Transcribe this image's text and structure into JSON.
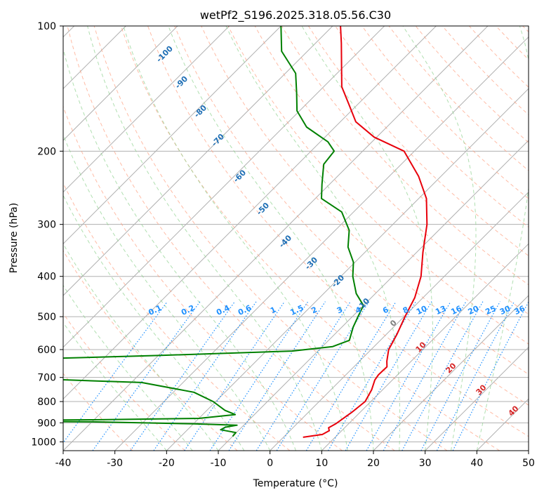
{
  "chart_data": {
    "type": "line",
    "title": "wetPf2_S196.2025.318.05.56.C30",
    "xlabel": "Temperature (°C)",
    "ylabel": "Pressure (hPa)",
    "xlim": [
      -40,
      50
    ],
    "ylim": [
      1050,
      100
    ],
    "y_scale": "log",
    "x_ticks": [
      -40,
      -30,
      -20,
      -10,
      0,
      10,
      20,
      30,
      40,
      50
    ],
    "y_ticks": [
      1000,
      900,
      800,
      700,
      600,
      500,
      400,
      300,
      200,
      100
    ],
    "grid": true,
    "series": [
      {
        "color": "#e8000b",
        "points": [
          {
            "p": 975,
            "t": 3.8
          },
          {
            "p": 960,
            "t": 7.0
          },
          {
            "p": 940,
            "t": 7.6
          },
          {
            "p": 925,
            "t": 6.9
          },
          {
            "p": 905,
            "t": 7.5
          },
          {
            "p": 880,
            "t": 7.9
          },
          {
            "p": 850,
            "t": 8.4
          },
          {
            "p": 800,
            "t": 8.9
          },
          {
            "p": 750,
            "t": 7.9
          },
          {
            "p": 710,
            "t": 6.6
          },
          {
            "p": 690,
            "t": 6.3
          },
          {
            "p": 660,
            "t": 6.4
          },
          {
            "p": 640,
            "t": 5.3
          },
          {
            "p": 600,
            "t": 3.4
          },
          {
            "p": 550,
            "t": 2.0
          },
          {
            "p": 500,
            "t": 0.2
          },
          {
            "p": 450,
            "t": -1.6
          },
          {
            "p": 400,
            "t": -4.5
          },
          {
            "p": 350,
            "t": -8.8
          },
          {
            "p": 300,
            "t": -13.4
          },
          {
            "p": 260,
            "t": -18.5
          },
          {
            "p": 230,
            "t": -24.3
          },
          {
            "p": 200,
            "t": -32.0
          },
          {
            "p": 185,
            "t": -40.5
          },
          {
            "p": 170,
            "t": -47.0
          },
          {
            "p": 155,
            "t": -51.5
          },
          {
            "p": 140,
            "t": -56.5
          },
          {
            "p": 125,
            "t": -60.5
          },
          {
            "p": 110,
            "t": -65.0
          },
          {
            "p": 100,
            "t": -68.5
          }
        ]
      },
      {
        "color": "#008000",
        "points": [
          {
            "p": 970,
            "t": -10.0
          },
          {
            "p": 950,
            "t": -10.1
          },
          {
            "p": 935,
            "t": -13.6
          },
          {
            "p": 922,
            "t": -13.2
          },
          {
            "p": 912,
            "t": -11.3
          },
          {
            "p": 905,
            "t": -20.0
          },
          {
            "p": 895,
            "t": -40.0
          },
          {
            "p": 892,
            "t": -60.0
          },
          {
            "p": 888,
            "t": -60.0
          },
          {
            "p": 885,
            "t": -40.0
          },
          {
            "p": 878,
            "t": -20.0
          },
          {
            "p": 860,
            "t": -13.7
          },
          {
            "p": 840,
            "t": -16.5
          },
          {
            "p": 800,
            "t": -20.5
          },
          {
            "p": 760,
            "t": -26.0
          },
          {
            "p": 720,
            "t": -38.0
          },
          {
            "p": 705,
            "t": -60.0
          },
          {
            "p": 630,
            "t": -60.0
          },
          {
            "p": 620,
            "t": -40.0
          },
          {
            "p": 605,
            "t": -15.0
          },
          {
            "p": 590,
            "t": -8.0
          },
          {
            "p": 570,
            "t": -6.0
          },
          {
            "p": 530,
            "t": -7.8
          },
          {
            "p": 500,
            "t": -8.9
          },
          {
            "p": 470,
            "t": -10.0
          },
          {
            "p": 440,
            "t": -13.7
          },
          {
            "p": 400,
            "t": -17.7
          },
          {
            "p": 370,
            "t": -20.3
          },
          {
            "p": 340,
            "t": -24.3
          },
          {
            "p": 310,
            "t": -27.3
          },
          {
            "p": 280,
            "t": -32.3
          },
          {
            "p": 260,
            "t": -38.8
          },
          {
            "p": 240,
            "t": -41.5
          },
          {
            "p": 215,
            "t": -45.0
          },
          {
            "p": 200,
            "t": -45.5
          },
          {
            "p": 190,
            "t": -48.5
          },
          {
            "p": 175,
            "t": -55.5
          },
          {
            "p": 160,
            "t": -60.5
          },
          {
            "p": 145,
            "t": -64.0
          },
          {
            "p": 130,
            "t": -68.0
          },
          {
            "p": 115,
            "t": -75.0
          },
          {
            "p": 100,
            "t": -80.0
          }
        ]
      }
    ],
    "isotherm_labels": [
      "-100",
      "-90",
      "-80",
      "-70",
      "-60",
      "-50",
      "-40",
      "-30",
      "-20",
      "-10"
    ],
    "mixing_ratio_labels": [
      "0.1",
      "0.2",
      "0.4",
      "0.6",
      "1",
      "1.5",
      "2",
      "3",
      "4",
      "6",
      "8",
      "10",
      "13",
      "16",
      "20",
      "25",
      "30",
      "36"
    ],
    "moist_adiabat_labels": [
      "0",
      "10",
      "20",
      "30",
      "40"
    ],
    "colors": {
      "temperature": "#e8000b",
      "dewpoint": "#008000",
      "isotherm_label": "#1f6fb5",
      "mixing_ratio": "#1e90ff",
      "dry_adiabat": "#ff9f80",
      "moist_adiabat": "#8fd18f",
      "moist_label": "#d62728",
      "grid": "#b0b0b0"
    }
  }
}
